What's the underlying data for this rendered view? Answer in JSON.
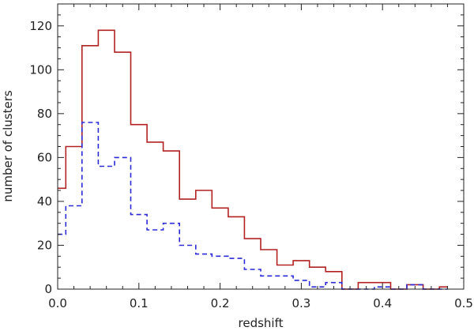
{
  "chart_data": {
    "type": "histogram",
    "title": "",
    "xlabel": "redshift",
    "ylabel": "number of clusters",
    "xlim": [
      0.0,
      0.5
    ],
    "ylim": [
      0,
      130
    ],
    "grid": false,
    "legend": "none",
    "x_ticks": [
      0.0,
      0.1,
      0.2,
      0.3,
      0.4,
      0.5
    ],
    "x_tick_labels": [
      "0.0",
      "0.1",
      "0.2",
      "0.3",
      "0.4",
      "0.5"
    ],
    "y_ticks": [
      0,
      20,
      40,
      60,
      80,
      100,
      120
    ],
    "y_tick_labels": [
      "0",
      "20",
      "40",
      "60",
      "80",
      "100",
      "120"
    ],
    "bin_edges": [
      0.0,
      0.01,
      0.03,
      0.05,
      0.07,
      0.09,
      0.11,
      0.13,
      0.15,
      0.17,
      0.19,
      0.21,
      0.23,
      0.25,
      0.27,
      0.29,
      0.31,
      0.33,
      0.35,
      0.37,
      0.39,
      0.41,
      0.43,
      0.45,
      0.47,
      0.48
    ],
    "series": [
      {
        "color": "#b22222",
        "style": "solid",
        "values": [
          46,
          65,
          111,
          118,
          108,
          75,
          67,
          63,
          41,
          45,
          37,
          33,
          23,
          18,
          11,
          13,
          10,
          8,
          0,
          3,
          3,
          0,
          2,
          0,
          1
        ]
      },
      {
        "color": "#2a2ad8",
        "style": "dashed",
        "values": [
          25,
          38,
          76,
          56,
          60,
          34,
          27,
          30,
          20,
          16,
          15,
          14,
          9,
          6,
          6,
          4,
          1,
          3,
          0,
          0,
          1,
          0,
          2,
          0,
          0
        ]
      }
    ]
  }
}
